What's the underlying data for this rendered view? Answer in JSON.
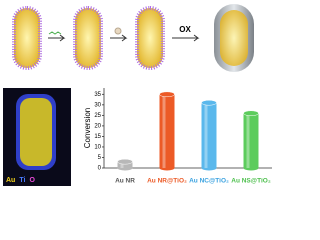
{
  "scheme_label": "OX",
  "eds_legend": [
    "Au",
    "Ti",
    "O"
  ],
  "eds_colors": [
    "#f2d21a",
    "#4a7bff",
    "#e84ad8"
  ],
  "chart_data": {
    "type": "bar",
    "y_label": "Conversion",
    "categories": [
      "Au NR",
      "Au NR@TiO₂",
      "Au NC@TiO₂",
      "Au NS@TiO₂"
    ],
    "values": [
      3,
      35,
      31,
      26
    ],
    "colors": [
      "#b8b8b8",
      "#ec5a26",
      "#5ab8ec",
      "#5ccc5c"
    ],
    "label_colors": [
      "#555555",
      "#ec5a26",
      "#3aa2e0",
      "#4cbf4c"
    ],
    "ylim": [
      0,
      38
    ],
    "yticks": [
      0,
      5,
      10,
      15,
      20,
      25,
      30,
      35
    ]
  }
}
